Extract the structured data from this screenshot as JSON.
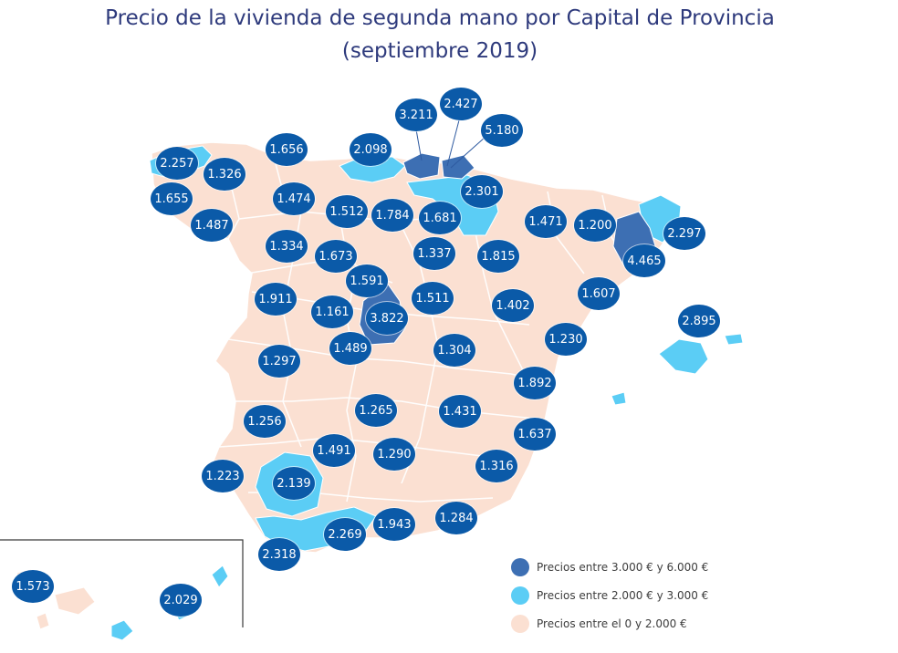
{
  "title": {
    "line1": "Precio de la vivienda de segunda mano por Capital de Provincia",
    "line2": "(septiembre 2019)"
  },
  "colors": {
    "high": "#3d6fb3",
    "mid": "#5bcdf5",
    "low": "#fbe0d2",
    "bubble": "#0b5aa8",
    "border": "#ffffff"
  },
  "bubbles": [
    {
      "value": "3.211"
    },
    {
      "value": "2.427"
    },
    {
      "value": "5.180"
    },
    {
      "value": "2.257"
    },
    {
      "value": "1.656"
    },
    {
      "value": "2.098"
    },
    {
      "value": "1.326"
    },
    {
      "value": "1.655"
    },
    {
      "value": "1.474"
    },
    {
      "value": "2.301"
    },
    {
      "value": "1.512"
    },
    {
      "value": "1.784"
    },
    {
      "value": "1.681"
    },
    {
      "value": "1.471"
    },
    {
      "value": "1.200"
    },
    {
      "value": "2.297"
    },
    {
      "value": "1.487"
    },
    {
      "value": "1.334"
    },
    {
      "value": "1.673"
    },
    {
      "value": "1.337"
    },
    {
      "value": "1.815"
    },
    {
      "value": "4.465"
    },
    {
      "value": "1.591"
    },
    {
      "value": "1.911"
    },
    {
      "value": "1.511"
    },
    {
      "value": "1.607"
    },
    {
      "value": "1.161"
    },
    {
      "value": "3.822"
    },
    {
      "value": "1.402"
    },
    {
      "value": "2.895"
    },
    {
      "value": "1.230"
    },
    {
      "value": "1.489"
    },
    {
      "value": "1.297"
    },
    {
      "value": "1.304"
    },
    {
      "value": "1.892"
    },
    {
      "value": "1.265"
    },
    {
      "value": "1.431"
    },
    {
      "value": "1.256"
    },
    {
      "value": "1.637"
    },
    {
      "value": "1.491"
    },
    {
      "value": "1.290"
    },
    {
      "value": "1.316"
    },
    {
      "value": "1.223"
    },
    {
      "value": "2.139"
    },
    {
      "value": "1.943"
    },
    {
      "value": "1.284"
    },
    {
      "value": "2.269"
    },
    {
      "value": "2.318"
    },
    {
      "value": "1.573"
    },
    {
      "value": "2.029"
    }
  ],
  "legend": [
    {
      "label": "Precios entre 3.000 € y 6.000 €",
      "color": "#3d6fb3"
    },
    {
      "label": "Precios entre 2.000 € y 3.000 €",
      "color": "#5bcdf5"
    },
    {
      "label": "Precios entre el 0 y 2.000 €",
      "color": "#fbe0d2"
    }
  ]
}
